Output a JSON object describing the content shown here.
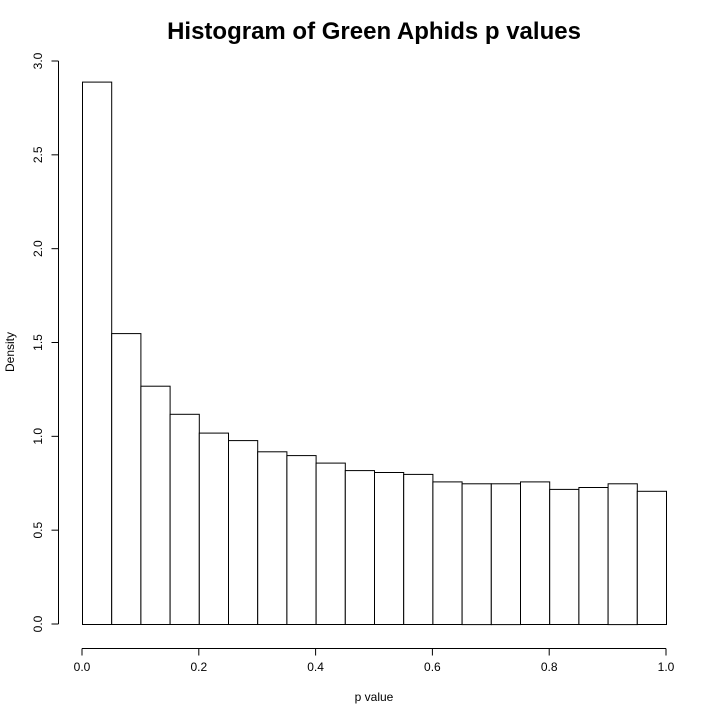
{
  "chart_data": {
    "type": "bar",
    "title": "Histogram of Green Aphids p values",
    "xlabel": "p value",
    "ylabel": "Density",
    "xlim": [
      0,
      1
    ],
    "ylim": [
      0,
      3
    ],
    "bin_edges": [
      0.0,
      0.05,
      0.1,
      0.15,
      0.2,
      0.25,
      0.3,
      0.35,
      0.4,
      0.45,
      0.5,
      0.55,
      0.6,
      0.65,
      0.7,
      0.75,
      0.8,
      0.85,
      0.9,
      0.95,
      1.0
    ],
    "values": [
      2.89,
      1.55,
      1.27,
      1.12,
      1.02,
      0.98,
      0.92,
      0.9,
      0.86,
      0.82,
      0.81,
      0.8,
      0.76,
      0.75,
      0.75,
      0.76,
      0.72,
      0.73,
      0.75,
      0.71
    ],
    "x_ticks": [
      "0.0",
      "0.2",
      "0.4",
      "0.6",
      "0.8",
      "1.0"
    ],
    "y_ticks": [
      "0.0",
      "0.5",
      "1.0",
      "1.5",
      "2.0",
      "2.5",
      "3.0"
    ],
    "grid": false,
    "colors": {
      "bar_fill": "#ffffff",
      "bar_stroke": "#000000"
    }
  }
}
